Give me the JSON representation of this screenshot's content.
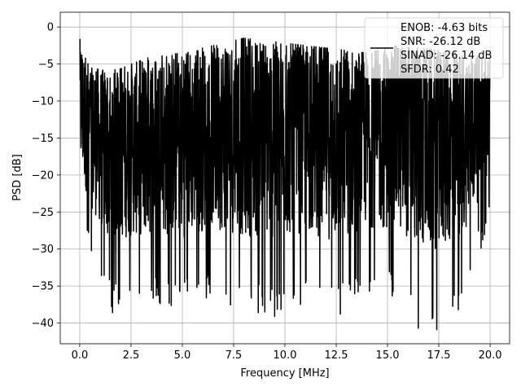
{
  "chart_data": {
    "type": "line",
    "title": "",
    "xlabel": "Frequency [MHz]",
    "ylabel": "PSD [dB]",
    "xlim": [
      -0.95,
      20.95
    ],
    "ylim": [
      -42.8,
      2.0
    ],
    "xticks": [
      0.0,
      2.5,
      5.0,
      7.5,
      10.0,
      12.5,
      15.0,
      17.5,
      20.0
    ],
    "xtick_labels": [
      "0.0",
      "2.5",
      "5.0",
      "7.5",
      "10.0",
      "12.5",
      "15.0",
      "17.5",
      "20.0"
    ],
    "yticks": [
      0,
      -5,
      -10,
      -15,
      -20,
      -25,
      -30,
      -35,
      -40
    ],
    "ytick_labels": [
      "0",
      "−5",
      "−10",
      "−15",
      "−20",
      "−25",
      "−30",
      "−35",
      "−40"
    ],
    "grid": true,
    "legend_position": "top-right",
    "series": [
      {
        "name": "ENOB: -4.63 bits\nSNR: -26.12 dB\nSINAD: -26.14 dB\nSFDR: 0.42",
        "color": "#000000",
        "description": "dense noise-like PSD trace, 0 to 20 MHz",
        "x_start": 0.0,
        "x_end": 20.0,
        "envelope": {
          "x": [
            0.0,
            0.5,
            1.5,
            2.5,
            3.5,
            5.0,
            6.5,
            8.0,
            9.5,
            11.0,
            12.5,
            14.0,
            15.5,
            17.0,
            18.5,
            20.0
          ],
          "max": [
            -1.6,
            -5.5,
            -6.0,
            -5.0,
            -4.0,
            -3.5,
            -2.5,
            -1.5,
            -2.0,
            -2.5,
            -3.0,
            -3.5,
            -2.5,
            -3.0,
            -3.5,
            -4.0
          ],
          "min": [
            -26.0,
            -31.0,
            -38.5,
            -37.0,
            -37.5,
            -38.0,
            -36.5,
            -38.5,
            -39.0,
            -37.5,
            -38.8,
            -36.0,
            -37.0,
            -40.8,
            -38.5,
            -26.5
          ]
        },
        "peaks": [
          {
            "x": 0.0,
            "y": -1.6
          },
          {
            "x": 8.7,
            "y": -38.6
          },
          {
            "x": 9.5,
            "y": -39.1
          },
          {
            "x": 12.7,
            "y": -38.8
          },
          {
            "x": 16.5,
            "y": -40.7
          },
          {
            "x": 17.4,
            "y": -40.9
          },
          {
            "x": 1.6,
            "y": -38.6
          }
        ]
      }
    ],
    "legend_lines": [
      "ENOB: -4.63 bits",
      "SNR: -26.12 dB",
      "SINAD: -26.14 dB",
      "SFDR: 0.42"
    ]
  }
}
